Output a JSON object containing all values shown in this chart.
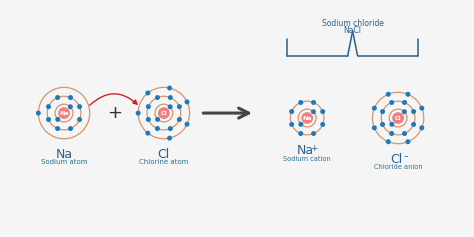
{
  "bg_color": "#f5f5f5",
  "atom_center_color": "#f08080",
  "orbit_color": "#d4956a",
  "electron_color": "#1a7abf",
  "text_color_main": "#2a6090",
  "text_color_label": "#2a7090",
  "arrow_color": "#444444",
  "red_arrow_color": "#cc2222",
  "brace_color": "#2a6090",
  "plus_color": "#333333",
  "na_label": "Na",
  "cl_label": "Cl",
  "sodium_atom_label": "Sodium atom",
  "chlorine_atom_label": "Chlorine atom",
  "sodium_cation_label": "Sodium cation",
  "chloride_anion_label": "Chloride anion",
  "nacl_line1": "Sodium chloride",
  "nacl_line2": "NaCl"
}
